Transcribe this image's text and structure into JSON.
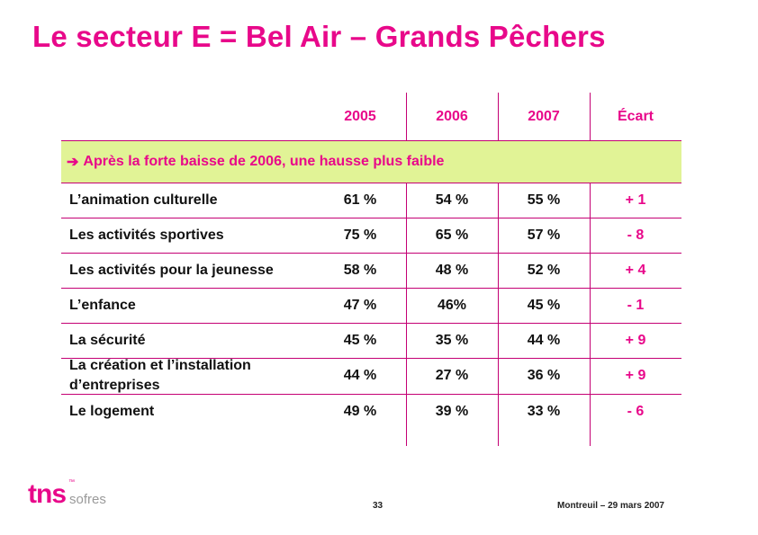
{
  "title": "Le secteur E = Bel Air – Grands Pêchers",
  "table": {
    "headers": [
      "2005",
      "2006",
      "2007",
      "Écart"
    ],
    "band": "Après la forte baisse de 2006, une hausse plus faible",
    "rows": [
      {
        "label": "L’animation culturelle",
        "v2005": "61 %",
        "v2006": "54 %",
        "v2007": "55 %",
        "ecart": "+ 1"
      },
      {
        "label": "Les activités sportives",
        "v2005": "75 %",
        "v2006": "65 %",
        "v2007": "57 %",
        "ecart": "- 8"
      },
      {
        "label": "Les activités pour la jeunesse",
        "v2005": "58 %",
        "v2006": "48 %",
        "v2007": "52 %",
        "ecart": "+ 4"
      },
      {
        "label": "L’enfance",
        "v2005": "47 %",
        "v2006": "46%",
        "v2007": "45 %",
        "ecart": "- 1"
      },
      {
        "label": "La sécurité",
        "v2005": "45 %",
        "v2006": "35 %",
        "v2007": "44 %",
        "ecart": "+ 9"
      },
      {
        "label": "La création et l’installation d’entreprises",
        "v2005": "44 %",
        "v2006": "27 %",
        "v2007": "36 %",
        "ecart": "+ 9"
      },
      {
        "label": "Le logement",
        "v2005": "49 %",
        "v2006": "39 %",
        "v2007": "33 %",
        "ecart": "- 6"
      }
    ]
  },
  "logo": {
    "brand": "tns",
    "sub": "sofres",
    "tm": "™"
  },
  "page_number": "33",
  "footer": "Montreuil – 29 mars 2007",
  "colors": {
    "accent": "#e8088a",
    "band": "#e1f396",
    "rule": "#c40074"
  }
}
